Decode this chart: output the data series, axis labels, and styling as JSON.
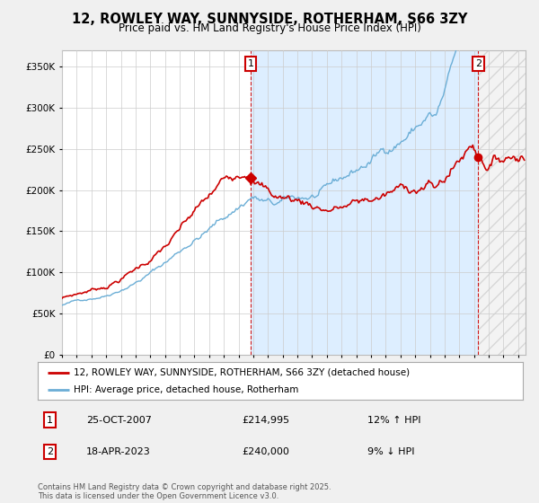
{
  "title": "12, ROWLEY WAY, SUNNYSIDE, ROTHERHAM, S66 3ZY",
  "subtitle": "Price paid vs. HM Land Registry's House Price Index (HPI)",
  "ylim": [
    0,
    370000
  ],
  "xlim_start": 1995.0,
  "xlim_end": 2026.5,
  "hpi_color": "#6baed6",
  "price_color": "#cc0000",
  "sale1_x": 2007.82,
  "sale1_y": 214995,
  "sale2_x": 2023.29,
  "sale2_y": 240000,
  "legend_label1": "12, ROWLEY WAY, SUNNYSIDE, ROTHERHAM, S66 3ZY (detached house)",
  "legend_label2": "HPI: Average price, detached house, Rotherham",
  "note1_label": "1",
  "note1_date": "25-OCT-2007",
  "note1_price": "£214,995",
  "note1_hpi": "12% ↑ HPI",
  "note2_label": "2",
  "note2_date": "18-APR-2023",
  "note2_price": "£240,000",
  "note2_hpi": "9% ↓ HPI",
  "footer": "Contains HM Land Registry data © Crown copyright and database right 2025.\nThis data is licensed under the Open Government Licence v3.0.",
  "background_color": "#f0f0f0",
  "plot_bg_color": "#ffffff",
  "shade_color": "#ddeeff",
  "grid_color": "#cccccc"
}
